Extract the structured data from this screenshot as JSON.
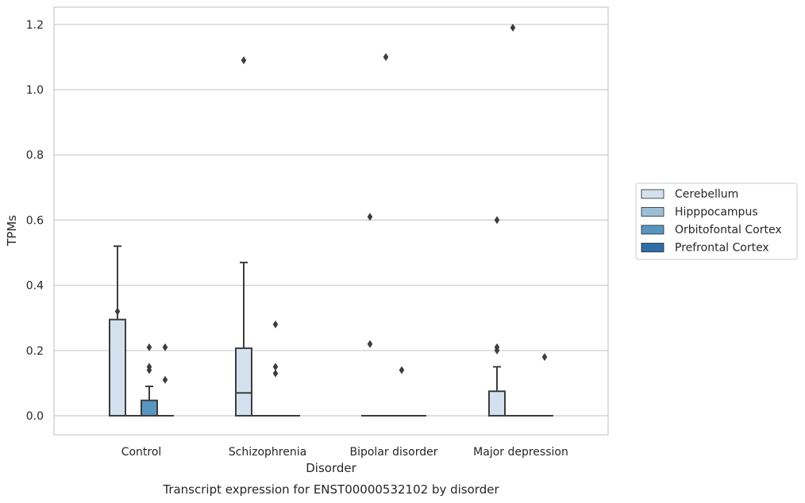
{
  "chart_data": {
    "type": "box",
    "title": "Transcript expression for ENST00000532102 by disorder",
    "xlabel": "Disorder",
    "ylabel": "TPMs",
    "ylim": [
      -0.058,
      1.25
    ],
    "yticks": [
      0.0,
      0.2,
      0.4,
      0.6,
      0.8,
      1.0,
      1.2
    ],
    "ytick_labels": [
      "0.0",
      "0.2",
      "0.4",
      "0.6",
      "0.8",
      "1.0",
      "1.2"
    ],
    "grid": "horizontal",
    "legend_position": "right, outside plot",
    "categories": [
      "Control",
      "Schizophrenia",
      "Bipolar disorder",
      "Major depression"
    ],
    "series": [
      {
        "name": "Cerebellum",
        "color": "#d3e1ef",
        "boxes": [
          {
            "q1": 0,
            "median": 0,
            "q3": 0.295,
            "whisker_low": 0,
            "whisker_high": 0.52,
            "outliers": [
              0.32
            ]
          },
          {
            "q1": 0,
            "median": 0.07,
            "q3": 0.207,
            "whisker_low": 0,
            "whisker_high": 0.47,
            "outliers": [
              1.09
            ]
          },
          {
            "q1": 0,
            "median": 0,
            "q3": 0,
            "whisker_low": 0,
            "whisker_high": 0,
            "outliers": [
              0.22,
              0.61
            ]
          },
          {
            "q1": 0,
            "median": 0,
            "q3": 0.075,
            "whisker_low": 0,
            "whisker_high": 0.15,
            "outliers": [
              0.2,
              0.21,
              0.6
            ]
          }
        ]
      },
      {
        "name": "Hipppocampus",
        "color": "#9cbfd6",
        "boxes": [
          {
            "q1": 0,
            "median": 0,
            "q3": 0,
            "whisker_low": 0,
            "whisker_high": 0,
            "outliers": []
          },
          {
            "q1": 0,
            "median": 0,
            "q3": 0,
            "whisker_low": 0,
            "whisker_high": 0,
            "outliers": []
          },
          {
            "q1": 0,
            "median": 0,
            "q3": 0,
            "whisker_low": 0,
            "whisker_high": 0,
            "outliers": [
              1.1
            ]
          },
          {
            "q1": 0,
            "median": 0,
            "q3": 0,
            "whisker_low": 0,
            "whisker_high": 0,
            "outliers": [
              1.19
            ]
          }
        ]
      },
      {
        "name": "Orbitofontal Cortex",
        "color": "#5895bf",
        "boxes": [
          {
            "q1": 0,
            "median": 0,
            "q3": 0.047,
            "whisker_low": 0,
            "whisker_high": 0.09,
            "outliers": [
              0.14,
              0.15,
              0.21
            ]
          },
          {
            "q1": 0,
            "median": 0,
            "q3": 0,
            "whisker_low": 0,
            "whisker_high": 0,
            "outliers": [
              0.13,
              0.15,
              0.28
            ]
          },
          {
            "q1": 0,
            "median": 0,
            "q3": 0,
            "whisker_low": 0,
            "whisker_high": 0,
            "outliers": [
              0.14
            ]
          },
          {
            "q1": 0,
            "median": 0,
            "q3": 0,
            "whisker_low": 0,
            "whisker_high": 0,
            "outliers": []
          }
        ]
      },
      {
        "name": "Prefrontal Cortex",
        "color": "#2d6da8",
        "boxes": [
          {
            "q1": 0,
            "median": 0,
            "q3": 0,
            "whisker_low": 0,
            "whisker_high": 0,
            "outliers": [
              0.11,
              0.21
            ]
          },
          {
            "q1": 0,
            "median": 0,
            "q3": 0,
            "whisker_low": 0,
            "whisker_high": 0,
            "outliers": []
          },
          {
            "q1": 0,
            "median": 0,
            "q3": 0,
            "whisker_low": 0,
            "whisker_high": 0,
            "outliers": []
          },
          {
            "q1": 0,
            "median": 0,
            "q3": 0,
            "whisker_low": 0,
            "whisker_high": 0,
            "outliers": [
              0.18
            ]
          }
        ]
      }
    ]
  }
}
